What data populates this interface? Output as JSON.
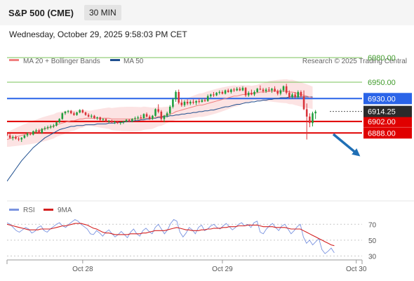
{
  "header": {
    "title": "S&P 500 (CME)",
    "timeframe": "30 MIN"
  },
  "date_line": "Wednesday, October 29, 2025 9:58:03 PM CET",
  "legend": {
    "ma20": "MA 20 + Bollinger Bands",
    "ma50": "MA 50",
    "rsi": "RSI",
    "ma9": "9MA"
  },
  "credit": "Research © 2025 Trading Central",
  "colors": {
    "up": "#1e9e3c",
    "down": "#d9343a",
    "support": "#e00000",
    "pivot": "#2a64e8",
    "resistance": "#79c35a",
    "ma50": "#1f4f8f",
    "ma20": "#f08080",
    "band": "#fbdcdc",
    "rsi": "#7b94e0",
    "ma9": "#d42020",
    "arrow": "#1f6fb5"
  },
  "chart_data": [
    {
      "type": "candlestick",
      "title": "S&P 500 (CME)",
      "ylim": [
        6805,
        6968
      ],
      "xlim": [
        0,
        122
      ],
      "x_ticks": [
        {
          "label": "Oct 28",
          "index": 26
        },
        {
          "label": "Oct 29",
          "index": 74
        },
        {
          "label": "Oct 30",
          "index": 120
        }
      ],
      "levels": [
        {
          "label": "6980.00",
          "value": 6980,
          "kind": "resistance"
        },
        {
          "label": "6950.00",
          "value": 6950,
          "kind": "resistance"
        },
        {
          "label": "6930.00",
          "value": 6930,
          "kind": "pivot"
        },
        {
          "label": "6902.00",
          "value": 6902,
          "kind": "support"
        },
        {
          "label": "6888.00",
          "value": 6888,
          "kind": "support"
        }
      ],
      "last_price": "6914.25",
      "candles": [
        [
          6887,
          6889,
          6884,
          6885
        ],
        [
          6885,
          6887,
          6881,
          6882
        ],
        [
          6882,
          6885,
          6879,
          6883
        ],
        [
          6883,
          6885,
          6880,
          6881
        ],
        [
          6881,
          6883,
          6878,
          6880
        ],
        [
          6880,
          6883,
          6877,
          6882
        ],
        [
          6882,
          6886,
          6881,
          6885
        ],
        [
          6885,
          6889,
          6883,
          6887
        ],
        [
          6887,
          6889,
          6885,
          6886
        ],
        [
          6886,
          6891,
          6885,
          6890
        ],
        [
          6890,
          6893,
          6888,
          6891
        ],
        [
          6891,
          6893,
          6887,
          6888
        ],
        [
          6888,
          6894,
          6887,
          6893
        ],
        [
          6893,
          6896,
          6891,
          6894
        ],
        [
          6894,
          6897,
          6892,
          6895
        ],
        [
          6895,
          6898,
          6893,
          6896
        ],
        [
          6896,
          6899,
          6894,
          6897
        ],
        [
          6897,
          6902,
          6896,
          6901
        ],
        [
          6901,
          6906,
          6900,
          6905
        ],
        [
          6905,
          6913,
          6904,
          6912
        ],
        [
          6912,
          6915,
          6910,
          6914
        ],
        [
          6914,
          6916,
          6912,
          6915
        ],
        [
          6915,
          6916,
          6911,
          6912
        ],
        [
          6912,
          6914,
          6909,
          6910
        ],
        [
          6910,
          6914,
          6909,
          6913
        ],
        [
          6913,
          6917,
          6912,
          6916
        ],
        [
          6916,
          6917,
          6912,
          6913
        ],
        [
          6913,
          6914,
          6909,
          6910
        ],
        [
          6910,
          6912,
          6907,
          6908
        ],
        [
          6908,
          6911,
          6906,
          6909
        ],
        [
          6909,
          6910,
          6905,
          6906
        ],
        [
          6906,
          6908,
          6904,
          6907
        ],
        [
          6907,
          6908,
          6903,
          6904
        ],
        [
          6904,
          6906,
          6902,
          6905
        ],
        [
          6905,
          6906,
          6901,
          6902
        ],
        [
          6902,
          6904,
          6900,
          6903
        ],
        [
          6903,
          6904,
          6900,
          6901
        ],
        [
          6901,
          6903,
          6899,
          6902
        ],
        [
          6902,
          6903,
          6899,
          6900
        ],
        [
          6900,
          6902,
          6898,
          6901
        ],
        [
          6901,
          6903,
          6899,
          6902
        ],
        [
          6902,
          6905,
          6901,
          6904
        ],
        [
          6904,
          6905,
          6901,
          6902
        ],
        [
          6902,
          6906,
          6901,
          6905
        ],
        [
          6905,
          6908,
          6903,
          6906
        ],
        [
          6906,
          6909,
          6904,
          6907
        ],
        [
          6907,
          6910,
          6905,
          6906
        ],
        [
          6906,
          6912,
          6905,
          6911
        ],
        [
          6911,
          6913,
          6907,
          6908
        ],
        [
          6908,
          6910,
          6904,
          6905
        ],
        [
          6905,
          6910,
          6904,
          6909
        ],
        [
          6909,
          6918,
          6908,
          6917
        ],
        [
          6917,
          6923,
          6912,
          6914
        ],
        [
          6914,
          6916,
          6903,
          6905
        ],
        [
          6905,
          6910,
          6901,
          6909
        ],
        [
          6909,
          6914,
          6907,
          6912
        ],
        [
          6912,
          6922,
          6910,
          6920
        ],
        [
          6920,
          6931,
          6918,
          6929
        ],
        [
          6929,
          6940,
          6926,
          6938
        ],
        [
          6938,
          6941,
          6923,
          6925
        ],
        [
          6925,
          6929,
          6920,
          6922
        ],
        [
          6922,
          6928,
          6920,
          6926
        ],
        [
          6926,
          6929,
          6922,
          6924
        ],
        [
          6924,
          6928,
          6922,
          6926
        ],
        [
          6926,
          6929,
          6923,
          6925
        ],
        [
          6925,
          6928,
          6922,
          6927
        ],
        [
          6927,
          6930,
          6924,
          6926
        ],
        [
          6926,
          6930,
          6925,
          6928
        ],
        [
          6928,
          6931,
          6926,
          6927
        ],
        [
          6927,
          6935,
          6926,
          6933
        ],
        [
          6933,
          6936,
          6931,
          6935
        ],
        [
          6935,
          6938,
          6932,
          6934
        ],
        [
          6934,
          6938,
          6933,
          6937
        ],
        [
          6937,
          6940,
          6935,
          6938
        ],
        [
          6938,
          6940,
          6935,
          6936
        ],
        [
          6936,
          6941,
          6935,
          6940
        ],
        [
          6940,
          6942,
          6937,
          6938
        ],
        [
          6938,
          6942,
          6936,
          6941
        ],
        [
          6941,
          6943,
          6938,
          6940
        ],
        [
          6940,
          6944,
          6939,
          6942
        ],
        [
          6942,
          6944,
          6939,
          6940
        ],
        [
          6940,
          6945,
          6939,
          6943
        ],
        [
          6943,
          6944,
          6932,
          6934
        ],
        [
          6934,
          6939,
          6932,
          6937
        ],
        [
          6937,
          6941,
          6934,
          6935
        ],
        [
          6935,
          6940,
          6933,
          6938
        ],
        [
          6938,
          6943,
          6937,
          6942
        ],
        [
          6942,
          6946,
          6940,
          6941
        ],
        [
          6941,
          6943,
          6937,
          6939
        ],
        [
          6939,
          6943,
          6937,
          6941
        ],
        [
          6941,
          6944,
          6938,
          6940
        ],
        [
          6940,
          6943,
          6937,
          6942
        ],
        [
          6942,
          6945,
          6938,
          6939
        ],
        [
          6939,
          6941,
          6934,
          6936
        ],
        [
          6936,
          6942,
          6934,
          6940
        ],
        [
          6940,
          6946,
          6938,
          6945
        ],
        [
          6945,
          6948,
          6935,
          6937
        ],
        [
          6937,
          6940,
          6930,
          6932
        ],
        [
          6932,
          6937,
          6930,
          6935
        ],
        [
          6935,
          6938,
          6930,
          6932
        ],
        [
          6932,
          6940,
          6930,
          6938
        ],
        [
          6938,
          6940,
          6931,
          6933
        ],
        [
          6933,
          6940,
          6916,
          6917
        ],
        [
          6917,
          6924,
          6880,
          6908
        ],
        [
          6908,
          6912,
          6895,
          6900
        ],
        [
          6900,
          6914,
          6896,
          6912
        ],
        [
          6912,
          6916,
          6905,
          6914
        ]
      ],
      "series": [
        {
          "name": "MA 50",
          "start_index": 0,
          "values": [
            6829,
            6834,
            6839,
            6844,
            6849,
            6854,
            6858,
            6862,
            6866,
            6870,
            6873,
            6876,
            6879,
            6882,
            6884,
            6886,
            6888,
            6890,
            6892,
            6893,
            6894,
            6895,
            6896,
            6896,
            6897,
            6897,
            6897,
            6898,
            6898,
            6898,
            6898,
            6899,
            6899,
            6899,
            6899,
            6900,
            6900,
            6900,
            6901,
            6901,
            6901,
            6902,
            6902,
            6902,
            6903,
            6903,
            6904,
            6904,
            6905,
            6905,
            6906,
            6906,
            6907,
            6907,
            6908,
            6908,
            6909,
            6909,
            6910,
            6910,
            6911,
            6911,
            6912,
            6912,
            6913,
            6913,
            6914,
            6914,
            6915,
            6915,
            6916,
            6916,
            6917,
            6918,
            6919,
            6920,
            6920,
            6921,
            6922,
            6923,
            6923,
            6924,
            6925,
            6925,
            6926,
            6926,
            6927,
            6927,
            6928,
            6928,
            6929,
            6929,
            6930,
            6930,
            6931,
            6931,
            6931,
            6932,
            6932,
            6932,
            6932,
            6932,
            6932,
            6932,
            6932,
            6932
          ]
        },
        {
          "name": "MA 20",
          "start_index": 0,
          "values": [
            6880,
            6881,
            6882,
            6883,
            6884,
            6885,
            6886,
            6887,
            6888,
            6889,
            6890,
            6891,
            6892,
            6893,
            6894,
            6895,
            6896,
            6898,
            6899,
            6900,
            6901,
            6902,
            6903,
            6903,
            6904,
            6905,
            6905,
            6906,
            6906,
            6906,
            6906,
            6906,
            6906,
            6906,
            6906,
            6906,
            6905,
            6905,
            6905,
            6905,
            6905,
            6905,
            6905,
            6905,
            6905,
            6905,
            6905,
            6906,
            6906,
            6906,
            6906,
            6907,
            6908,
            6908,
            6909,
            6910,
            6911,
            6912,
            6914,
            6915,
            6916,
            6917,
            6918,
            6919,
            6920,
            6921,
            6922,
            6922,
            6923,
            6924,
            6925,
            6926,
            6927,
            6928,
            6929,
            6930,
            6931,
            6932,
            6933,
            6933,
            6934,
            6935,
            6935,
            6936,
            6936,
            6937,
            6937,
            6938,
            6938,
            6938,
            6939,
            6939,
            6939,
            6939,
            6939,
            6939,
            6939,
            6938,
            6938,
            6937,
            6936,
            6935,
            6934,
            6933,
            6932,
            6931
          ]
        }
      ]
    },
    {
      "type": "line",
      "title": "RSI",
      "ylim": [
        25,
        80
      ],
      "y_ticks": [
        70,
        50,
        30
      ],
      "series": [
        {
          "name": "RSI",
          "values": [
            72,
            70,
            66,
            62,
            60,
            63,
            66,
            64,
            59,
            61,
            66,
            68,
            62,
            60,
            64,
            67,
            70,
            72,
            68,
            66,
            70,
            73,
            76,
            74,
            70,
            67,
            64,
            58,
            57,
            62,
            59,
            55,
            60,
            63,
            58,
            54,
            57,
            61,
            57,
            53,
            60,
            64,
            58,
            55,
            62,
            65,
            61,
            58,
            66,
            70,
            64,
            58,
            63,
            71,
            76,
            74,
            60,
            54,
            59,
            66,
            63,
            58,
            66,
            69,
            62,
            64,
            68,
            70,
            66,
            64,
            68,
            71,
            67,
            63,
            66,
            70,
            72,
            68,
            70,
            66,
            72,
            74,
            60,
            58,
            64,
            68,
            71,
            66,
            62,
            68,
            70,
            64,
            58,
            62,
            67,
            70,
            54,
            46,
            50,
            44,
            48,
            52,
            38,
            33,
            36,
            40,
            34
          ]
        },
        {
          "name": "9MA",
          "values": [
            70,
            69,
            68,
            67,
            66,
            65,
            64,
            63,
            63,
            63,
            63,
            64,
            64,
            64,
            64,
            65,
            66,
            67,
            68,
            68,
            69,
            70,
            71,
            71,
            71,
            70,
            69,
            67,
            65,
            64,
            62,
            60,
            59,
            59,
            58,
            57,
            57,
            57,
            57,
            57,
            58,
            58,
            58,
            58,
            59,
            59,
            60,
            61,
            62,
            62,
            62,
            62,
            63,
            64,
            65,
            66,
            65,
            64,
            63,
            63,
            62,
            62,
            62,
            63,
            63,
            64,
            64,
            65,
            65,
            65,
            66,
            66,
            67,
            67,
            67,
            68,
            68,
            68,
            69,
            69,
            69,
            69,
            68,
            67,
            67,
            67,
            67,
            66,
            66,
            66,
            66,
            65,
            64,
            64,
            64,
            64,
            62,
            60,
            58,
            56,
            54,
            52,
            50,
            48,
            46,
            44,
            43
          ]
        }
      ]
    }
  ]
}
